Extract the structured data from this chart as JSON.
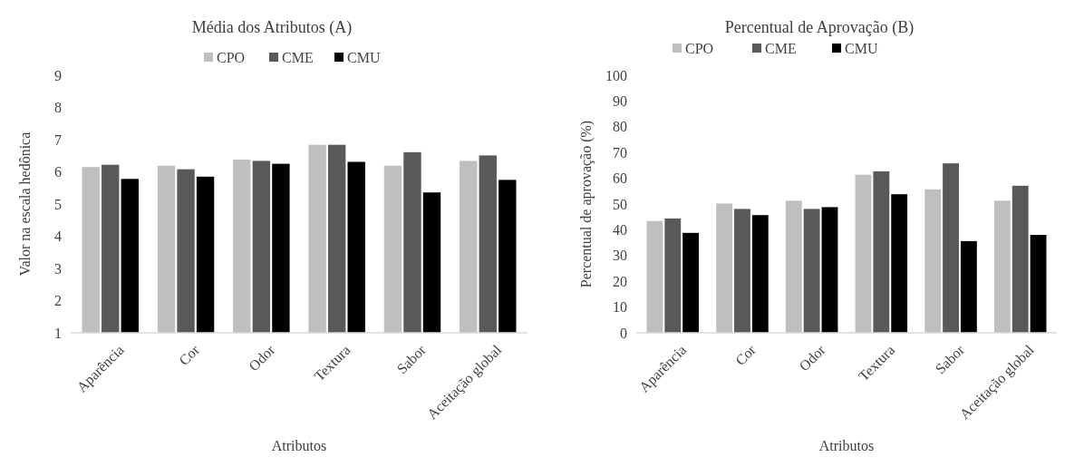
{
  "chart_data": [
    {
      "type": "bar",
      "title": "Média dos Atributos (A)",
      "xlabel": "Atributos",
      "ylabel": "Valor na escala hedônica",
      "categories": [
        "Aparência",
        "Cor",
        "Odor",
        "Textura",
        "Sabor",
        "Aceitação global"
      ],
      "series": [
        {
          "name": "CPO",
          "color": "#bfbfbf",
          "values": [
            6.15,
            6.19,
            6.38,
            6.84,
            6.19,
            6.34
          ]
        },
        {
          "name": "CME",
          "color": "#595959",
          "values": [
            6.22,
            6.08,
            6.34,
            6.84,
            6.61,
            6.51
          ]
        },
        {
          "name": "CMU",
          "color": "#000000",
          "values": [
            5.78,
            5.85,
            6.25,
            6.31,
            5.36,
            5.75
          ]
        }
      ],
      "ylim": [
        1,
        9
      ],
      "yticks": [
        1,
        2,
        3,
        4,
        5,
        6,
        7,
        8,
        9
      ],
      "grid": false,
      "legend": "top"
    },
    {
      "type": "bar",
      "title": "Percentual de Aprovação (B)",
      "xlabel": "Atributos",
      "ylabel": "Percentual  de aprovação (%)",
      "categories": [
        "Aparência",
        "Cor",
        "Odor",
        "Textura",
        "Sabor",
        "Aceitação global"
      ],
      "series": [
        {
          "name": "CPO",
          "color": "#bfbfbf",
          "values": [
            43.4,
            50.2,
            51.3,
            61.4,
            55.7,
            51.3
          ]
        },
        {
          "name": "CME",
          "color": "#595959",
          "values": [
            44.4,
            48.1,
            48.1,
            62.7,
            65.8,
            57.1
          ]
        },
        {
          "name": "CMU",
          "color": "#000000",
          "values": [
            38.8,
            45.7,
            48.8,
            53.8,
            35.6,
            38.0
          ]
        }
      ],
      "ylim": [
        0,
        100
      ],
      "yticks": [
        0,
        10,
        20,
        30,
        40,
        50,
        60,
        70,
        80,
        90,
        100
      ],
      "grid": false,
      "legend": "top left"
    }
  ]
}
